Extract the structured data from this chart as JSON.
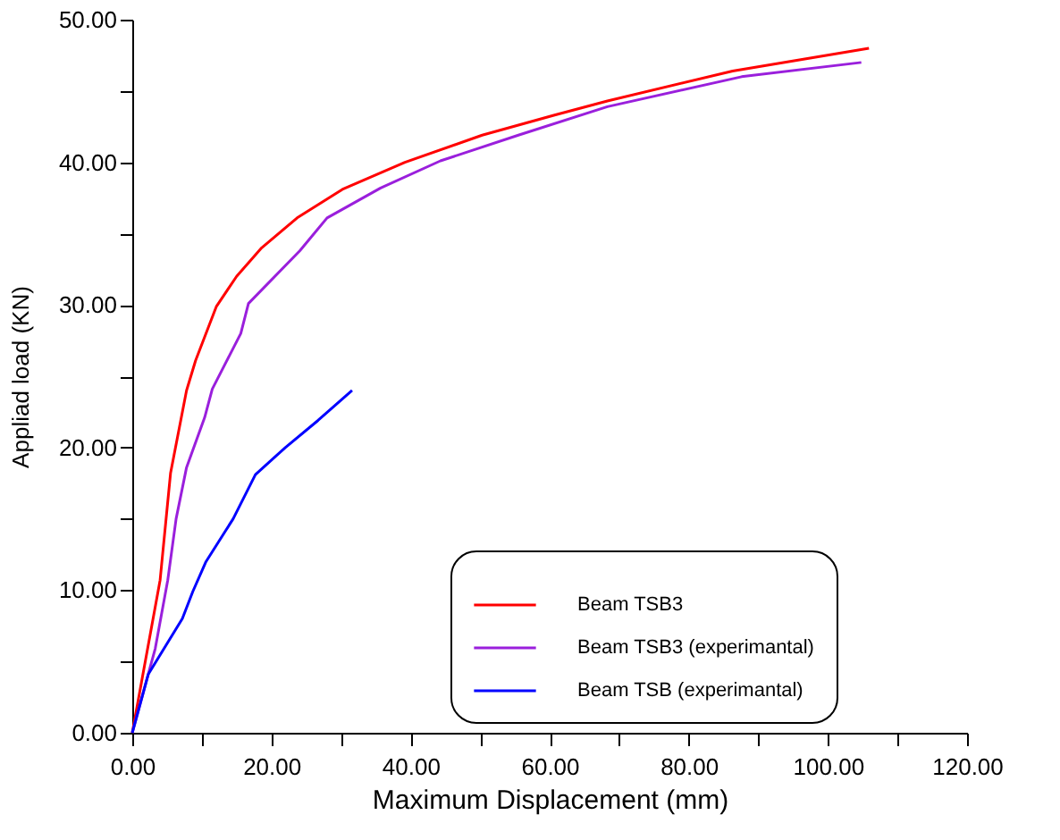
{
  "chart_data": {
    "type": "line",
    "xlabel": "Maximum Displacement (mm)",
    "ylabel": "Appliad load (KN)",
    "xlim": [
      0,
      120
    ],
    "ylim": [
      0,
      50
    ],
    "xticks": [
      {
        "value": 0,
        "label": "0.00"
      },
      {
        "value": 10,
        "label": null
      },
      {
        "value": 20,
        "label": "20.00"
      },
      {
        "value": 30,
        "label": null
      },
      {
        "value": 40,
        "label": "40.00"
      },
      {
        "value": 50,
        "label": null
      },
      {
        "value": 60,
        "label": "60.00"
      },
      {
        "value": 70,
        "label": null
      },
      {
        "value": 80,
        "label": "80.00"
      },
      {
        "value": 90,
        "label": null
      },
      {
        "value": 100,
        "label": "100.00"
      },
      {
        "value": 110,
        "label": null
      },
      {
        "value": 120,
        "label": "120.00"
      }
    ],
    "yticks": [
      {
        "value": 0,
        "label": "0.00"
      },
      {
        "value": 5,
        "label": null
      },
      {
        "value": 10,
        "label": "10.00"
      },
      {
        "value": 15,
        "label": null
      },
      {
        "value": 20,
        "label": "20.00"
      },
      {
        "value": 25,
        "label": null
      },
      {
        "value": 30,
        "label": "30.00"
      },
      {
        "value": 35,
        "label": null
      },
      {
        "value": 40,
        "label": "40.00"
      },
      {
        "value": 45,
        "label": null
      },
      {
        "value": 50,
        "label": "50.00"
      }
    ],
    "grid": false,
    "legend": "bottom right",
    "marker": "none",
    "line_style": "solid",
    "series": [
      {
        "name": "Beam TSB3",
        "color": "#ff0000",
        "x": [
          0,
          4.0,
          5.5,
          7.8,
          9.1,
          12.1,
          15.0,
          18.6,
          23.7,
          30.2,
          39.2,
          50.3,
          60.6,
          68.3,
          86.3,
          105.9
        ],
        "values": [
          0,
          10.7,
          18.2,
          24.0,
          26.1,
          29.9,
          32.0,
          34.0,
          36.1,
          38.1,
          40.0,
          41.9,
          43.3,
          44.3,
          46.4,
          48.0
        ]
      },
      {
        "name": "Beam TSB3 (experimantal)",
        "color": "#9a1fdc",
        "x": [
          0,
          3.3,
          5.1,
          6.3,
          7.8,
          10.4,
          11.5,
          15.6,
          16.7,
          24.1,
          28.0,
          35.7,
          44.3,
          55.5,
          68.3,
          87.6,
          104.8
        ],
        "values": [
          0,
          5.9,
          10.7,
          15.0,
          18.6,
          22.1,
          24.1,
          28.0,
          30.1,
          33.8,
          36.1,
          38.2,
          40.1,
          41.9,
          43.9,
          46.0,
          47.0
        ]
      },
      {
        "name": "Beam TSB (experimantal)",
        "color": "#0000ff",
        "x": [
          0,
          2.3,
          7.2,
          8.7,
          10.6,
          14.5,
          17.7,
          22.0,
          26.7,
          31.6
        ],
        "values": [
          0,
          4.1,
          8.0,
          9.9,
          12.0,
          15.0,
          18.1,
          20.0,
          21.9,
          24.0
        ]
      }
    ]
  }
}
